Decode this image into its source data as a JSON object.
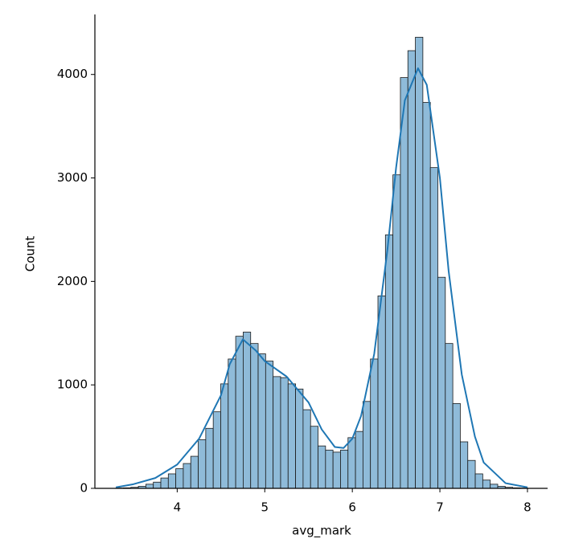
{
  "chart_data": {
    "type": "histogram",
    "x_label": "avg_mark",
    "y_label": "Count",
    "bins": [
      3.3,
      3.3855,
      3.471,
      3.5565,
      3.642,
      3.7275,
      3.813,
      3.8985,
      3.984,
      4.0695,
      4.155,
      4.2405,
      4.326,
      4.4115,
      4.497,
      4.5825,
      4.668,
      4.7535,
      4.839,
      4.9245,
      5.01,
      5.0955,
      5.181,
      5.2665,
      5.352,
      5.4375,
      5.523,
      5.6085,
      5.694,
      5.7795,
      5.865,
      5.9505,
      6.036,
      6.1215,
      6.207,
      6.2925,
      6.378,
      6.4635,
      6.549,
      6.6345,
      6.72,
      6.8055,
      6.891,
      6.9765,
      7.062,
      7.1475,
      7.233,
      7.3185,
      7.404,
      7.4895,
      7.575,
      7.6605,
      7.746,
      7.8315,
      7.917,
      8.0025
    ],
    "values": [
      3,
      5,
      10,
      20,
      40,
      60,
      100,
      140,
      190,
      240,
      310,
      470,
      580,
      740,
      1010,
      1250,
      1470,
      1510,
      1400,
      1300,
      1230,
      1080,
      1070,
      1010,
      960,
      760,
      600,
      410,
      370,
      350,
      370,
      490,
      550,
      840,
      1250,
      1860,
      2450,
      3030,
      3970,
      4230,
      4360,
      3730,
      3100,
      2040,
      1400,
      820,
      450,
      270,
      140,
      80,
      40,
      20,
      10,
      5,
      3
    ],
    "color": "#8fbbd9",
    "edge_color": "#1a1a1a",
    "kde": {
      "color": "#1f77b4",
      "x": [
        3.3,
        3.5,
        3.75,
        4.0,
        4.25,
        4.5,
        4.6,
        4.75,
        4.9,
        5.0,
        5.25,
        5.5,
        5.65,
        5.8,
        5.9,
        6.0,
        6.1,
        6.25,
        6.4,
        6.5,
        6.6,
        6.75,
        6.85,
        7.0,
        7.1,
        7.25,
        7.4,
        7.5,
        7.75,
        8.0
      ],
      "values": [
        10,
        40,
        100,
        230,
        480,
        900,
        1200,
        1440,
        1330,
        1230,
        1080,
        830,
        570,
        400,
        390,
        480,
        700,
        1300,
        2300,
        3100,
        3750,
        4060,
        3900,
        3000,
        2100,
        1100,
        500,
        250,
        50,
        10
      ]
    },
    "xlim": [
      3.06,
      8.23
    ],
    "ylim": [
      0,
      4580
    ],
    "xticks": [
      4,
      5,
      6,
      7,
      8
    ],
    "yticks": [
      0,
      1000,
      2000,
      3000,
      4000
    ]
  }
}
